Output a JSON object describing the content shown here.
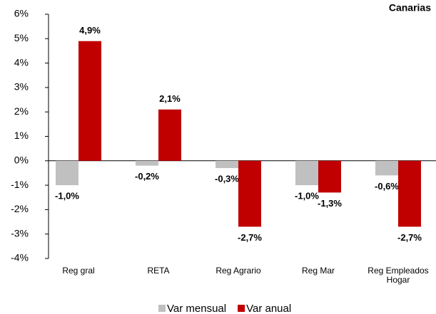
{
  "chart_data": {
    "type": "bar",
    "subtitle": "Canarias",
    "categories": [
      "Reg gral",
      "RETA",
      "Reg Agrario",
      "Reg Mar",
      "Reg Empleados Hogar"
    ],
    "series": [
      {
        "name": "Var mensual",
        "color": "#c0c0c0",
        "values": [
          -1.0,
          -0.2,
          -0.3,
          -1.0,
          -0.6
        ],
        "value_labels": [
          "-1,0%",
          "-0,2%",
          "-0,3%",
          "-1,0%",
          "-0,6%"
        ]
      },
      {
        "name": "Var anual",
        "color": "#c00000",
        "values": [
          4.9,
          2.1,
          -2.7,
          -1.3,
          -2.7
        ],
        "value_labels": [
          "4,9%",
          "2,1%",
          "-2,7%",
          "-1,3%",
          "-2,7%"
        ]
      }
    ],
    "ylim": [
      -4,
      6
    ],
    "yticks": [
      {
        "value": -4,
        "label": "-4%"
      },
      {
        "value": -3,
        "label": "-3%"
      },
      {
        "value": -2,
        "label": "-2%"
      },
      {
        "value": -1,
        "label": "-1%"
      },
      {
        "value": 0,
        "label": "0%"
      },
      {
        "value": 1,
        "label": "1%"
      },
      {
        "value": 2,
        "label": "2%"
      },
      {
        "value": 3,
        "label": "3%"
      },
      {
        "value": 4,
        "label": "4%"
      },
      {
        "value": 5,
        "label": "5%"
      },
      {
        "value": 6,
        "label": "6%"
      }
    ],
    "legend": "bottom"
  }
}
